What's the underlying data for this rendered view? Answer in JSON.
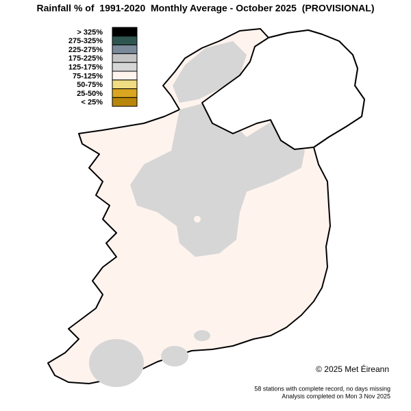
{
  "header": {
    "title": "Rainfall % of  1991-2020  Monthly Average - October 2025  (PROVISIONAL)"
  },
  "legend": {
    "items": [
      {
        "label": "> 325%",
        "color": "#000000"
      },
      {
        "label": "275-325%",
        "color": "#2f5550"
      },
      {
        "label": "225-275%",
        "color": "#7b8a9a"
      },
      {
        "label": "175-225%",
        "color": "#c4c4c4"
      },
      {
        "label": "125-175%",
        "color": "#d6d6d6"
      },
      {
        "label": "75-125%",
        "color": "#fff3ee"
      },
      {
        "label": "50-75%",
        "color": "#f0dc82"
      },
      {
        "label": "25-50%",
        "color": "#daa520"
      },
      {
        "label": "< 25%",
        "color": "#b8860b"
      }
    ]
  },
  "credit": "© 2025 Met Éireann",
  "footer": {
    "line1": "58 stations with complete record, no days missing",
    "line2": "Analysis completed on Mon 3 Nov 2025"
  }
}
